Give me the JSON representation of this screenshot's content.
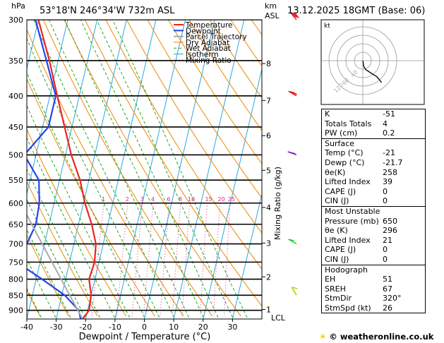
{
  "header": {
    "location": "53°18'N  246°34'W  732m  ASL",
    "date": "13.12.2025  18GMT  (Base: 06)",
    "unit_hpa": "hPa",
    "unit_km": "km",
    "unit_asl": "ASL"
  },
  "chart_data": {
    "type": "line",
    "title": "Skew-T log-P diagram",
    "xlabel": "Dewpoint / Temperature (°C)",
    "ylabel": "hPa",
    "right_label": "Mixing Ratio (g/kg)",
    "xlim": [
      -40,
      40
    ],
    "ylim": [
      930,
      300
    ],
    "pressure_ticks": [
      300,
      350,
      400,
      450,
      500,
      550,
      600,
      650,
      700,
      750,
      800,
      850,
      900
    ],
    "temp_ticks": [
      -40,
      -30,
      -20,
      -10,
      0,
      10,
      20,
      30
    ],
    "km_ticks": [
      {
        "km": "1",
        "p": 897
      },
      {
        "km": "2",
        "p": 793
      },
      {
        "km": "3",
        "p": 698
      },
      {
        "km": "4",
        "p": 610
      },
      {
        "km": "5",
        "p": 530
      },
      {
        "km": "6",
        "p": 465
      },
      {
        "km": "7",
        "p": 407
      },
      {
        "km": "8",
        "p": 354
      }
    ],
    "lcl_label": "LCL",
    "lcl_p": 925,
    "mixing_ratio_labels": [
      "1",
      "2",
      "3",
      "4",
      "6",
      "8",
      "10",
      "15",
      "20",
      "25"
    ],
    "mixing_ratio_values": [
      1,
      2,
      3,
      4,
      6,
      8,
      10,
      15,
      20,
      25
    ],
    "legend": [
      "Temperature",
      "Dewpoint",
      "Parcel Trajectory",
      "Dry Adiabat",
      "Wet Adiabat",
      "Isotherm",
      "Mixing Ratio"
    ],
    "series": [
      {
        "name": "Temperature",
        "color": "#ee2222",
        "points": [
          [
            930,
            -21
          ],
          [
            900,
            -19.5
          ],
          [
            850,
            -20
          ],
          [
            800,
            -22
          ],
          [
            750,
            -21.5
          ],
          [
            700,
            -22.5
          ],
          [
            650,
            -25.5
          ],
          [
            600,
            -29.5
          ],
          [
            550,
            -33
          ],
          [
            500,
            -38
          ],
          [
            450,
            -42.5
          ],
          [
            400,
            -47.5
          ],
          [
            350,
            -53
          ],
          [
            300,
            -60
          ]
        ]
      },
      {
        "name": "Dewpoint",
        "color": "#2244ee",
        "points": [
          [
            930,
            -21.7
          ],
          [
            900,
            -23
          ],
          [
            850,
            -29
          ],
          [
            800,
            -38
          ],
          [
            750,
            -48
          ],
          [
            700,
            -46
          ],
          [
            650,
            -44.5
          ],
          [
            600,
            -45
          ],
          [
            550,
            -47
          ],
          [
            500,
            -54
          ],
          [
            450,
            -48
          ],
          [
            400,
            -48
          ],
          [
            350,
            -54
          ],
          [
            300,
            -61
          ]
        ]
      },
      {
        "name": "Parcel Trajectory",
        "color": "#aaaaaa",
        "points": [
          [
            930,
            -21
          ],
          [
            900,
            -23.3
          ],
          [
            850,
            -27.3
          ],
          [
            800,
            -31.5
          ],
          [
            750,
            -36
          ],
          [
            700,
            -40.8
          ],
          [
            650,
            -45.9
          ],
          [
            600,
            -51.4
          ],
          [
            550,
            -57.3
          ],
          [
            500,
            -63.7
          ]
        ]
      }
    ],
    "wind_barbs": [
      {
        "p": 300,
        "dir": 320,
        "kt": 45
      },
      {
        "p": 400,
        "dir": 300,
        "kt": 40
      },
      {
        "p": 500,
        "dir": 290,
        "kt": 30
      },
      {
        "p": 700,
        "dir": 300,
        "kt": 10
      },
      {
        "p": 850,
        "dir": 330,
        "kt": 5
      }
    ],
    "hodograph": {
      "title": "kt",
      "rings": [
        10,
        20,
        30,
        40
      ],
      "labels": [
        "40",
        "60",
        "120"
      ],
      "trace": [
        [
          0,
          0
        ],
        [
          1,
          -6
        ],
        [
          3,
          -9
        ],
        [
          6,
          -11
        ],
        [
          9,
          -13
        ],
        [
          14,
          -16
        ],
        [
          19,
          -22
        ]
      ]
    }
  },
  "indices": {
    "basic": [
      {
        "k": "K",
        "v": "-51"
      },
      {
        "k": "Totals Totals",
        "v": "4"
      },
      {
        "k": "PW (cm)",
        "v": "0.2"
      }
    ],
    "surface_title": "Surface",
    "surface": [
      {
        "k": "Temp (°C)",
        "v": "-21"
      },
      {
        "k": "Dewp (°C)",
        "v": "-21.7"
      },
      {
        "k": "θe(K)",
        "v": "258"
      },
      {
        "k": "Lifted Index",
        "v": "39"
      },
      {
        "k": "CAPE (J)",
        "v": "0"
      },
      {
        "k": "CIN (J)",
        "v": "0"
      }
    ],
    "mu_title": "Most Unstable",
    "mu": [
      {
        "k": "Pressure (mb)",
        "v": "650"
      },
      {
        "k": "θe (K)",
        "v": "296"
      },
      {
        "k": "Lifted Index",
        "v": "21"
      },
      {
        "k": "CAPE (J)",
        "v": "0"
      },
      {
        "k": "CIN (J)",
        "v": "0"
      }
    ],
    "hodo_title": "Hodograph",
    "hodo": [
      {
        "k": "EH",
        "v": "51"
      },
      {
        "k": "SREH",
        "v": "67"
      },
      {
        "k": "StmDir",
        "v": "320°"
      },
      {
        "k": "StmSpd (kt)",
        "v": "26"
      }
    ]
  },
  "footer": {
    "copyright": "© weatheronline.co.uk"
  }
}
